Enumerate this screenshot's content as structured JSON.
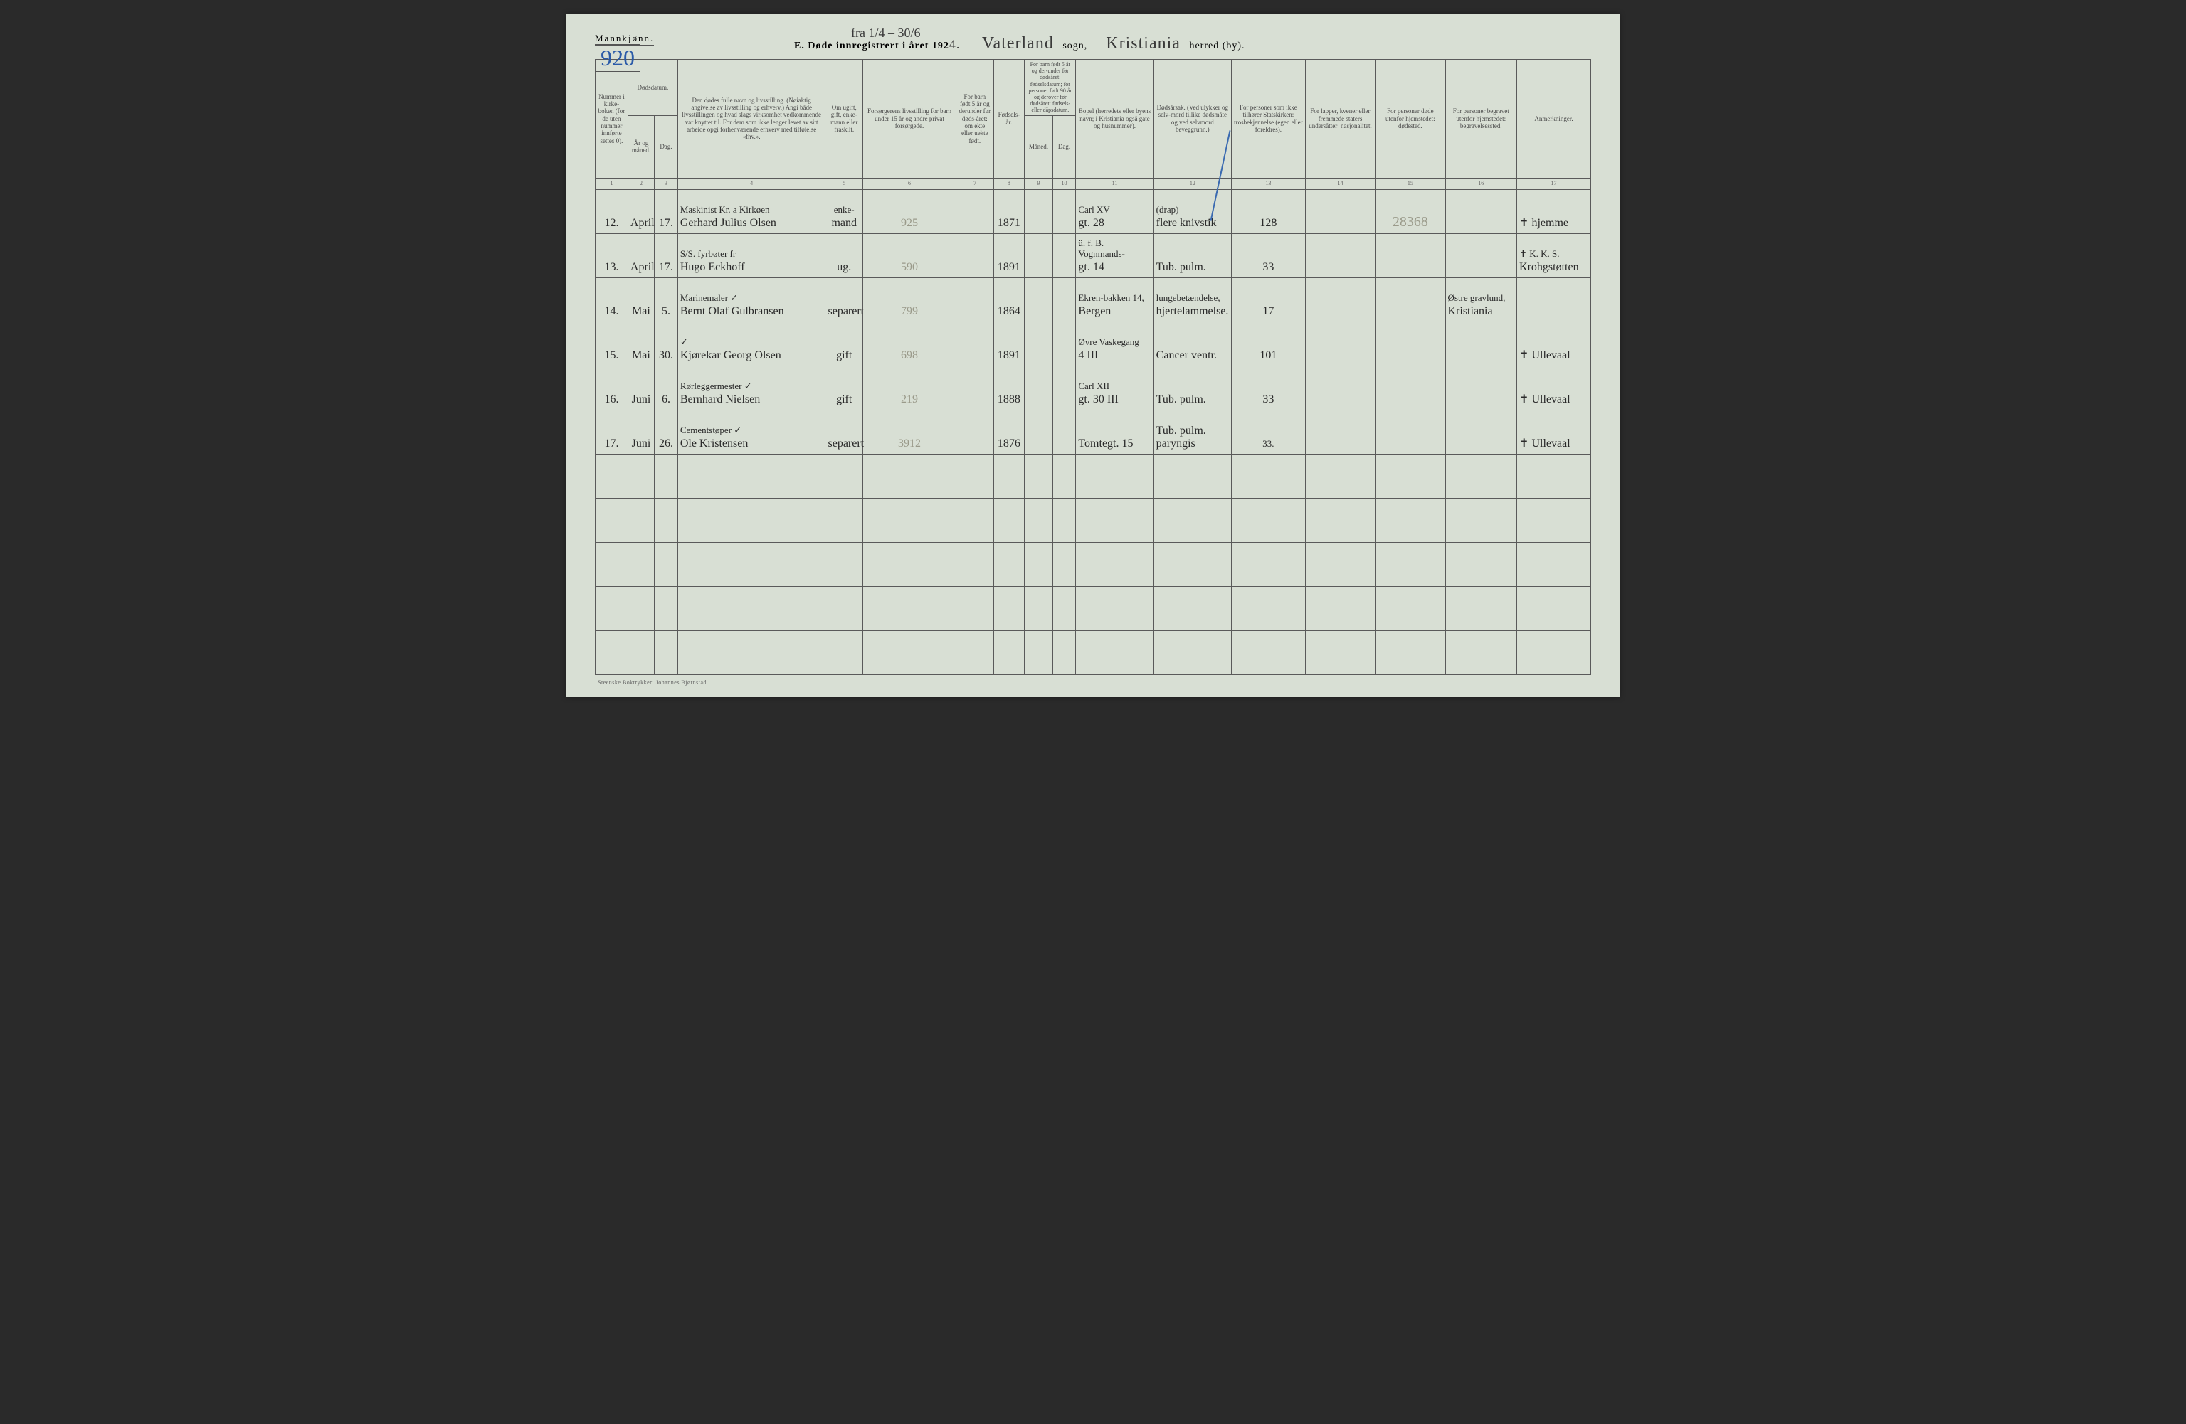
{
  "header": {
    "gender": "Mannkjønn.",
    "page_number": "920",
    "top_annotation": "fra 1/4 – 30/6",
    "title_prefix": "E.  Døde innregistrert i året 192",
    "year_suffix": "4.",
    "parish_value": "Vaterland",
    "parish_label": "sogn,",
    "district_value": "Kristiania",
    "district_label": "herred (by)."
  },
  "columns": [
    {
      "n": "1",
      "label": "Nummer i kirke-boken (for de uten nummer innførte settes 0)."
    },
    {
      "n": "2",
      "label": "År og måned."
    },
    {
      "n": "3",
      "label": "Dag."
    },
    {
      "n": "4",
      "label": "Den dødes fulle navn og livsstilling. (Nøiaktig angivelse av livsstilling og erhverv.) Angi både livsstillingen og hvad slags virksomhet vedkommende var knyttet til. For dem som ikke lenger levet av sitt arbeide opgi forhenværende erhverv med tilføielse «fhv.»."
    },
    {
      "n": "5",
      "label": "Om ugift, gift, enke-mann eller fraskilt."
    },
    {
      "n": "6",
      "label": "Forsørgerens livsstilling for barn under 15 år og andre privat forsørgede."
    },
    {
      "n": "7",
      "label": "For barn født 5 år og derunder før døds-året: om ekte eller uekte født."
    },
    {
      "n": "8",
      "label": "Fødsels-år."
    },
    {
      "n": "9",
      "label": "Måned."
    },
    {
      "n": "10",
      "label": "Dag."
    },
    {
      "n": "11",
      "label": "Bopel (herredets eller byens navn; i Kristiania også gate og husnummer)."
    },
    {
      "n": "12",
      "label": "Dødsårsak. (Ved ulykker og selv-mord tillike dødsmåte og ved selvmord beveggrunn.)"
    },
    {
      "n": "13",
      "label": "For personer som ikke tilhører Statskirken: trosbekjennelse (egen eller foreldres)."
    },
    {
      "n": "14",
      "label": "For lapper, kvener eller fremmede staters undersåtter: nasjonalitet."
    },
    {
      "n": "15",
      "label": "For personer døde utenfor hjemstedet: dødssted."
    },
    {
      "n": "16",
      "label": "For personer begravet utenfor hjemstedet: begravelsessted."
    },
    {
      "n": "17",
      "label": "Anmerkninger."
    }
  ],
  "col_group_2_3": "Dødsdatum.",
  "col_group_9_10": "For barn født 5 år og der-under før dødsåret: fødselsdatum; for personer født 90 år og derover før dødsåret: fødsels- eller dåpsdatum.",
  "rows": [
    {
      "num": "12.",
      "month": "April",
      "day": "17.",
      "name_upper": "Maskinist  Kr. a Kirkøen",
      "name_lower": "Gerhard Julius Olsen",
      "status_upper": "enke-",
      "status_lower": "mand",
      "provider": "925",
      "birth": "1871",
      "residence_upper": "Carl XV",
      "residence_lower": "gt. 28",
      "cause_upper": "(drap)",
      "cause_lower": "flere knivstik",
      "c13": "128",
      "c15": "28368",
      "remark": "✝ hjemme"
    },
    {
      "num": "13.",
      "month": "April",
      "day": "17.",
      "name_upper": "S/S. fyrbøter   fr",
      "name_lower": "Hugo Eckhoff",
      "status_lower": "ug.",
      "provider": "590",
      "birth": "1891",
      "residence_upper": "ü. f. B. Vognmands-",
      "residence_lower": "gt. 14",
      "cause_lower": "Tub. pulm.",
      "c13": "33",
      "remark_upper": "✝ K. K. S.",
      "remark": "Krohgstøtten"
    },
    {
      "num": "14.",
      "month": "Mai",
      "day": "5.",
      "name_upper": "Marinemaler   ✓",
      "name_lower": "Bernt Olaf Gulbransen",
      "status_lower": "separert",
      "provider": "799",
      "birth": "1864",
      "residence_upper": "Ekren-bakken 14,",
      "residence_lower": "Bergen",
      "cause_upper": "lungebetændelse,",
      "cause_lower": "hjertelammelse.",
      "c13": "17",
      "c16_upper": "Østre gravlund,",
      "c16": "Kristiania"
    },
    {
      "num": "15.",
      "month": "Mai",
      "day": "30.",
      "name_upper": "✓",
      "name_lower": "Kjørekar Georg Olsen",
      "status_lower": "gift",
      "provider": "698",
      "birth": "1891",
      "residence_upper": "Øvre Vaskegang",
      "residence_lower": "4 III",
      "cause_lower": "Cancer ventr.",
      "c13": "101",
      "remark": "✝ Ullevaal"
    },
    {
      "num": "16.",
      "month": "Juni",
      "day": "6.",
      "name_upper": "Rørleggermester ✓",
      "name_lower": "Bernhard Nielsen",
      "status_lower": "gift",
      "provider": "219",
      "birth": "1888",
      "residence_upper": "Carl XII",
      "residence_lower": "gt. 30 III",
      "cause_lower": "Tub. pulm.",
      "c13": "33",
      "remark": "✝ Ullevaal"
    },
    {
      "num": "17.",
      "month": "Juni",
      "day": "26.",
      "name_upper": "Cementstøper   ✓",
      "name_lower": "Ole Kristensen",
      "status_lower": "separert",
      "provider": "3912",
      "birth": "1876",
      "residence_lower": "Tomtegt. 15",
      "cause_lower": "Tub. pulm. paryngis",
      "c13_upper": "33.",
      "remark": "✝ Ullevaal"
    }
  ],
  "empty_rows": 5,
  "footer": "Steenske Boktrykkeri Johannes Bjørnstad.",
  "colors": {
    "paper": "#d8dfd4",
    "ink": "#2a2a2a",
    "rule": "#5a5a5a",
    "blue": "#2a5aa8",
    "pencil": "#9a9a8a"
  }
}
